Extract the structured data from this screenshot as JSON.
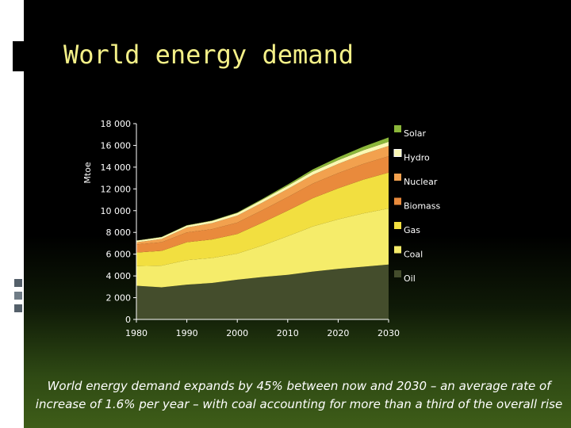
{
  "slide": {
    "title": "World energy demand",
    "caption": "World energy demand expands by 45% between now and 2030 – an average rate of increase of 1.6% per year – with coal accounting for more than a third of the overall rise"
  },
  "chart_data": {
    "type": "area",
    "stacked": true,
    "ylabel": "Mtoe",
    "xlabel": "",
    "xlim": [
      1980,
      2030
    ],
    "ylim": [
      0,
      18000
    ],
    "x_ticks": [
      "1980",
      "1990",
      "2000",
      "2010",
      "2020",
      "2030"
    ],
    "y_ticks": [
      "0",
      "2 000",
      "4 000",
      "6 000",
      "8 000",
      "10 000",
      "12 000",
      "14 000",
      "16 000",
      "18 000"
    ],
    "grid": false,
    "legend_position": "right",
    "x": [
      1980,
      1985,
      1990,
      1995,
      2000,
      2005,
      2010,
      2015,
      2020,
      2025,
      2030
    ],
    "series": [
      {
        "name": "Oil",
        "color": "#444d2c",
        "values": [
          3100,
          2950,
          3200,
          3350,
          3650,
          3900,
          4100,
          4400,
          4650,
          4850,
          5050
        ]
      },
      {
        "name": "Coal",
        "color": "#f5ec6a",
        "values": [
          1800,
          2000,
          2250,
          2300,
          2400,
          2900,
          3550,
          4150,
          4550,
          4900,
          5150
        ]
      },
      {
        "name": "Gas",
        "color": "#f2df40",
        "values": [
          1250,
          1350,
          1650,
          1700,
          1800,
          2100,
          2350,
          2600,
          2850,
          3100,
          3300
        ]
      },
      {
        "name": "Biomass",
        "color": "#e98a3c",
        "values": [
          750,
          800,
          900,
          950,
          1050,
          1150,
          1250,
          1350,
          1400,
          1450,
          1500
        ]
      },
      {
        "name": "Nuclear",
        "color": "#f2a14e",
        "values": [
          190,
          300,
          450,
          550,
          650,
          700,
          750,
          800,
          850,
          900,
          950
        ]
      },
      {
        "name": "Hydro",
        "color": "#fbf8b4",
        "values": [
          150,
          170,
          190,
          210,
          230,
          260,
          280,
          310,
          340,
          360,
          380
        ]
      },
      {
        "name": "Solar",
        "color": "#8bb63a",
        "values": [
          10,
          15,
          20,
          30,
          50,
          80,
          130,
          190,
          260,
          330,
          400
        ]
      }
    ]
  }
}
